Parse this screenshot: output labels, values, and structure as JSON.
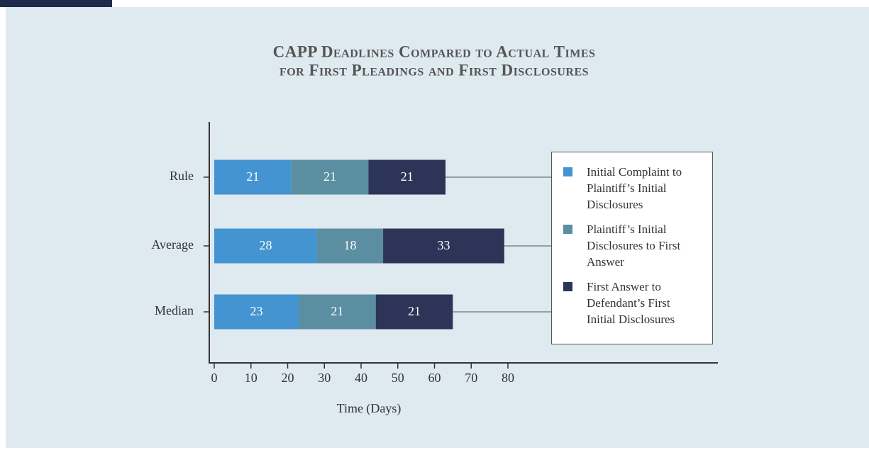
{
  "chart_data": {
    "type": "stacked-bar-horizontal",
    "title": [
      "CAPP Deadlines Compared to Actual Times",
      "for First Pleadings and First Disclosures"
    ],
    "categories": [
      "Rule",
      "Average",
      "Median"
    ],
    "series": [
      {
        "name": "Initial Complaint to Plaintiff’s Initial Disclosures",
        "color": "#4394d0",
        "values": [
          21,
          28,
          23
        ]
      },
      {
        "name": "Plaintiff’s Initial Disclosures to First Answer",
        "color": "#5b8ea0",
        "values": [
          21,
          18,
          21
        ]
      },
      {
        "name": "First Answer to Defendant’s First Initial Disclosures",
        "color": "#2c3558",
        "values": [
          21,
          33,
          21
        ]
      }
    ],
    "x_label": "Time (Days)",
    "xlim": [
      0,
      80
    ],
    "xticks": [
      0,
      10,
      20,
      30,
      40,
      50,
      60,
      70,
      80
    ]
  }
}
